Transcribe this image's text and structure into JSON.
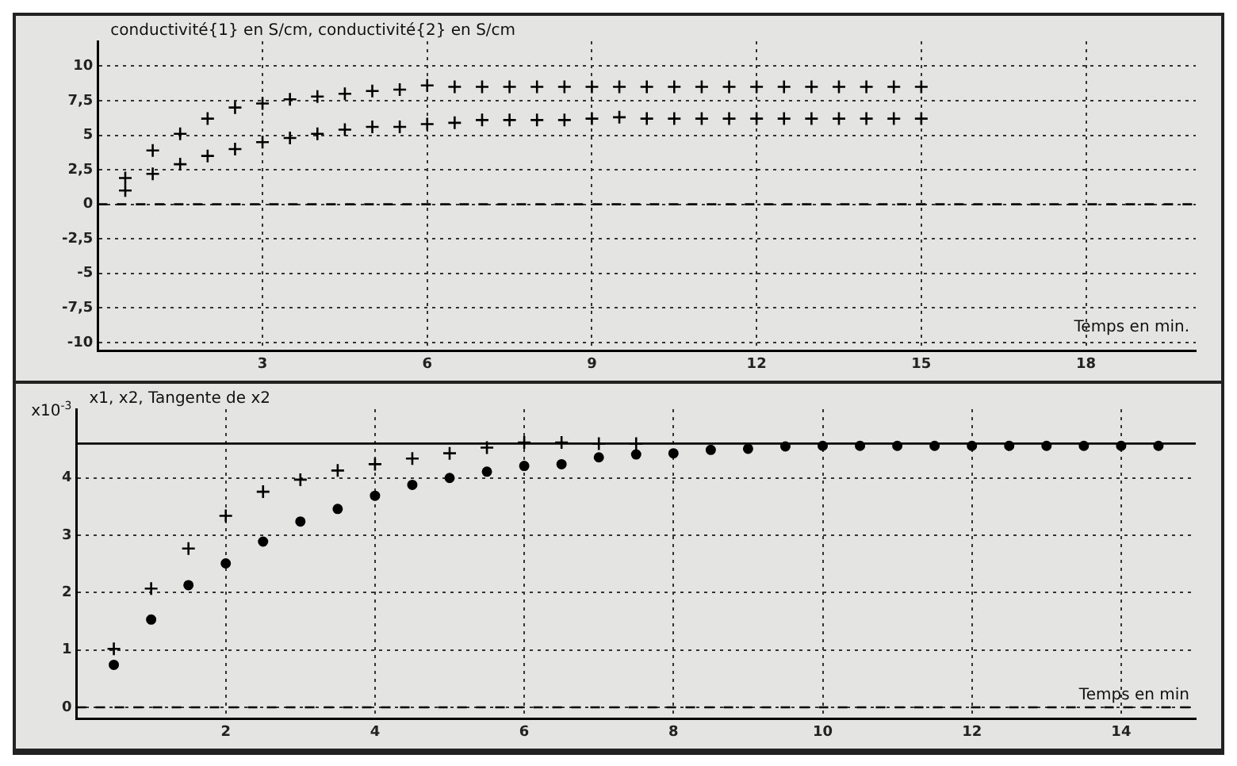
{
  "chart_data": [
    {
      "type": "scatter",
      "ylabel": "conductivité{1} en S/cm, conductivité{2} en S/cm",
      "xlabel": "Temps en min.",
      "xlim": [
        0,
        20
      ],
      "xticks": [
        3,
        6,
        9,
        12,
        15,
        18
      ],
      "ylim": [
        -10.6,
        11.8
      ],
      "yticks": [
        {
          "value": -10,
          "label": "-10"
        },
        {
          "value": -7.5,
          "label": "-7,5"
        },
        {
          "value": -5,
          "label": "-5"
        },
        {
          "value": -2.5,
          "label": "-2,5"
        },
        {
          "value": 0,
          "label": "0"
        },
        {
          "value": 2.5,
          "label": "2,5"
        },
        {
          "value": 5,
          "label": "5"
        },
        {
          "value": 7.5,
          "label": "7,5"
        },
        {
          "value": 10,
          "label": "10"
        }
      ],
      "grid": true,
      "legend": false,
      "ref_lines": [
        {
          "axis": "y",
          "value": 0,
          "line_style": "dashed"
        }
      ],
      "series": [
        {
          "color": "#000000",
          "marker": "cross",
          "x": [
            0.5,
            1,
            1.5,
            2,
            2.5,
            3,
            3.5,
            4,
            4.5,
            5,
            5.5,
            6,
            6.5,
            7,
            7.5,
            8,
            8.5,
            9,
            9.5,
            10,
            10.5,
            11,
            11.5,
            12,
            12.5,
            13,
            13.5,
            14,
            14.5,
            15
          ],
          "values": [
            1.9,
            3.9,
            5.1,
            6.2,
            7.0,
            7.3,
            7.6,
            7.8,
            8.0,
            8.2,
            8.3,
            8.6,
            8.5,
            8.5,
            8.5,
            8.5,
            8.5,
            8.5,
            8.5,
            8.5,
            8.5,
            8.5,
            8.5,
            8.5,
            8.5,
            8.5,
            8.5,
            8.5,
            8.5,
            8.5
          ]
        },
        {
          "color": "#000000",
          "marker": "cross",
          "x": [
            0.5,
            1,
            1.5,
            2,
            2.5,
            3,
            3.5,
            4,
            4.5,
            5,
            5.5,
            6,
            6.5,
            7,
            7.5,
            8,
            8.5,
            9,
            9.5,
            10,
            10.5,
            11,
            11.5,
            12,
            12.5,
            13,
            13.5,
            14,
            14.5,
            15
          ],
          "values": [
            1.0,
            2.2,
            2.9,
            3.5,
            4.0,
            4.5,
            4.8,
            5.1,
            5.4,
            5.6,
            5.6,
            5.8,
            5.9,
            6.1,
            6.1,
            6.1,
            6.1,
            6.2,
            6.3,
            6.2,
            6.2,
            6.2,
            6.2,
            6.2,
            6.2,
            6.2,
            6.2,
            6.2,
            6.2,
            6.2
          ]
        }
      ]
    },
    {
      "type": "scatter",
      "ylabel": "x1, x2, Tangente de x2",
      "xlabel": "Temps en min",
      "annotations": [
        "x10$^{-3}$"
      ],
      "xlim": [
        0,
        15
      ],
      "xticks": [
        2,
        4,
        6,
        8,
        10,
        12,
        14
      ],
      "ylim": [
        -0.2,
        5.2
      ],
      "yticks": [
        0,
        1,
        2,
        3,
        4
      ],
      "grid": true,
      "legend": false,
      "ref_lines": [
        {
          "axis": "y",
          "value": 0,
          "line_style": "dashed"
        }
      ],
      "series": [
        {
          "color": "#000000",
          "marker": "cross",
          "x": [
            0.5,
            1,
            1.5,
            2,
            2.5,
            3,
            3.5,
            4,
            4.5,
            5,
            5.5,
            6,
            6.5,
            7,
            7.5
          ],
          "values": [
            1.02,
            2.07,
            2.77,
            3.34,
            3.76,
            3.97,
            4.13,
            4.24,
            4.34,
            4.43,
            4.53,
            4.62,
            4.62,
            4.6,
            4.6
          ]
        },
        {
          "color": "#000000",
          "marker": "circle",
          "x": [
            0.5,
            1,
            1.5,
            2,
            2.5,
            3,
            3.5,
            4,
            4.5,
            5,
            5.5,
            6,
            6.5,
            7,
            7.5,
            8,
            8.5,
            9,
            9.5,
            10,
            10.5,
            11,
            11.5,
            12,
            12.5,
            13,
            13.5,
            14,
            14.5
          ],
          "values": [
            0.74,
            1.53,
            2.13,
            2.51,
            2.89,
            3.24,
            3.46,
            3.69,
            3.88,
            4.0,
            4.11,
            4.21,
            4.24,
            4.36,
            4.41,
            4.43,
            4.49,
            4.51,
            4.55,
            4.56,
            4.56,
            4.56,
            4.56,
            4.56,
            4.56,
            4.56,
            4.56,
            4.56,
            4.56
          ]
        },
        {
          "type": "line",
          "color": "#000000",
          "marker": "none",
          "line_style": "solid",
          "x": [
            0,
            15
          ],
          "values": [
            4.6,
            4.6
          ]
        }
      ]
    }
  ]
}
